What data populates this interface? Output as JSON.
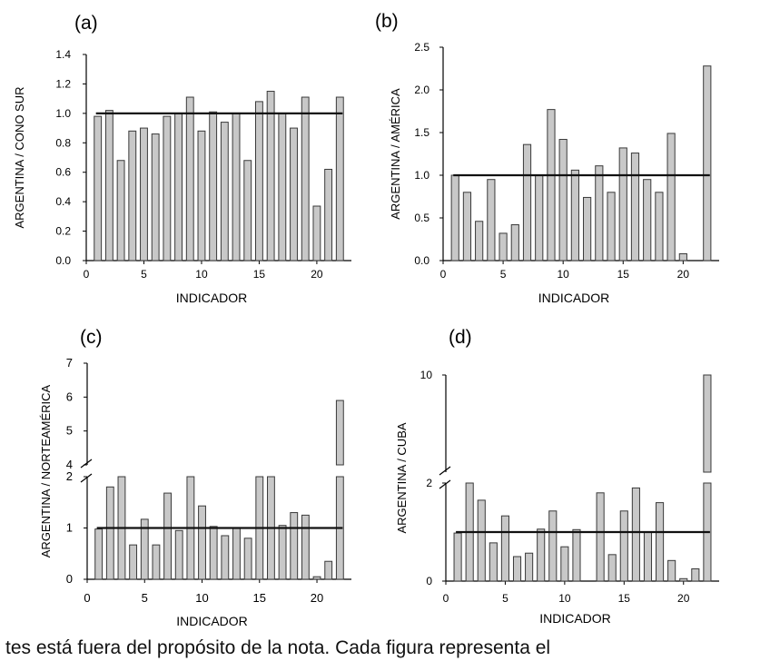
{
  "caption_fragment": "tes está fuera del propósito de la nota. Cada figura representa el",
  "colors": {
    "bar_fill": "#c8c8c8",
    "bar_stroke": "#3a3a3a",
    "reference_line": "#111111"
  },
  "chart_data": [
    {
      "type": "bar",
      "panel_label": "(a)",
      "xlabel": "INDICADOR",
      "ylabel": "ARGENTINA / CONO SUR",
      "x": [
        1,
        2,
        3,
        4,
        5,
        6,
        7,
        8,
        9,
        10,
        11,
        12,
        13,
        14,
        15,
        16,
        17,
        18,
        19,
        20,
        21,
        22
      ],
      "values": [
        0.98,
        1.02,
        0.68,
        0.88,
        0.9,
        0.86,
        0.98,
        1.0,
        1.11,
        0.88,
        1.01,
        0.94,
        1.0,
        0.68,
        1.08,
        1.15,
        1.0,
        0.9,
        1.11,
        0.37,
        0.62,
        1.11
      ],
      "reference_line": {
        "y": 1.0,
        "x_from": 1,
        "x_to": 22
      },
      "xlim": [
        0,
        23
      ],
      "ylim": [
        0,
        1.4
      ],
      "xticks": [
        0,
        5,
        10,
        15,
        20
      ],
      "yticks": [
        0.0,
        0.2,
        0.4,
        0.6,
        0.8,
        1.0,
        1.2,
        1.4
      ],
      "ytick_labels": [
        "0.0",
        "0.2",
        "0.4",
        "0.6",
        "0.8",
        "1.0",
        "1.2",
        "1.4"
      ],
      "grid": false
    },
    {
      "type": "bar",
      "panel_label": "(b)",
      "xlabel": "INDICADOR",
      "ylabel": "ARGENTINA / AMÉRICA",
      "x": [
        1,
        2,
        3,
        4,
        5,
        6,
        7,
        8,
        9,
        10,
        11,
        12,
        13,
        14,
        15,
        16,
        17,
        18,
        19,
        20,
        21,
        22
      ],
      "values": [
        1.0,
        0.8,
        0.46,
        0.95,
        0.32,
        0.42,
        1.36,
        1.0,
        1.77,
        1.42,
        1.06,
        0.74,
        1.11,
        0.8,
        1.32,
        1.26,
        0.95,
        0.8,
        1.49,
        0.08,
        null,
        2.28
      ],
      "reference_line": {
        "y": 1.0,
        "x_from": 1,
        "x_to": 22
      },
      "xlim": [
        0,
        23
      ],
      "ylim": [
        0,
        2.5
      ],
      "xticks": [
        0,
        5,
        10,
        15,
        20
      ],
      "yticks": [
        0.0,
        0.5,
        1.0,
        1.5,
        2.0,
        2.5
      ],
      "ytick_labels": [
        "0.0",
        "0.5",
        "1.0",
        "1.5",
        "2.0",
        "2.5"
      ],
      "grid": false
    },
    {
      "type": "bar",
      "panel_label": "(c)",
      "xlabel": "INDICADOR",
      "ylabel": "ARGENTINA / NORTEAMÉRICA",
      "x": [
        1,
        2,
        3,
        4,
        5,
        6,
        7,
        8,
        9,
        10,
        11,
        12,
        13,
        14,
        15,
        16,
        17,
        18,
        19,
        20,
        21,
        22
      ],
      "values": [
        0.98,
        1.8,
        2.03,
        0.67,
        1.17,
        0.67,
        1.68,
        0.95,
        2.03,
        1.43,
        1.03,
        0.85,
        1.0,
        0.8,
        2.03,
        2.03,
        1.05,
        1.3,
        1.25,
        0.05,
        0.35,
        5.9
      ],
      "reference_line": {
        "y": 1.0,
        "x_from": 1,
        "x_to": 22
      },
      "xlim": [
        0,
        23
      ],
      "broken_axis": {
        "lower": [
          0,
          2
        ],
        "upper": [
          4,
          7
        ]
      },
      "xticks": [
        0,
        5,
        10,
        15,
        20
      ],
      "yticks": [
        0,
        1,
        2,
        4,
        5,
        6,
        7
      ],
      "ytick_labels": [
        "0",
        "1",
        "2",
        "4",
        "5",
        "6",
        "7"
      ],
      "grid": false
    },
    {
      "type": "bar",
      "panel_label": "(d)",
      "xlabel": "INDICADOR",
      "ylabel": "ARGENTINA / CUBA",
      "x": [
        1,
        2,
        3,
        4,
        5,
        6,
        7,
        8,
        9,
        10,
        11,
        12,
        13,
        14,
        15,
        16,
        17,
        18,
        19,
        20,
        21,
        22
      ],
      "values": [
        0.98,
        2.0,
        1.65,
        0.78,
        1.33,
        0.5,
        0.57,
        1.06,
        1.43,
        0.7,
        1.05,
        null,
        1.8,
        0.54,
        1.43,
        1.9,
        1.0,
        1.6,
        0.42,
        0.05,
        0.25,
        10.0
      ],
      "reference_line": {
        "y": 1.0,
        "x_from": 1,
        "x_to": 22
      },
      "xlim": [
        0,
        23
      ],
      "broken_axis": {
        "lower": [
          0,
          2
        ],
        "upper": [
          2,
          10
        ]
      },
      "xticks": [
        0,
        5,
        10,
        15,
        20
      ],
      "yticks": [
        0,
        2,
        10
      ],
      "ytick_labels": [
        "0",
        "2",
        "10"
      ],
      "grid": false
    }
  ]
}
